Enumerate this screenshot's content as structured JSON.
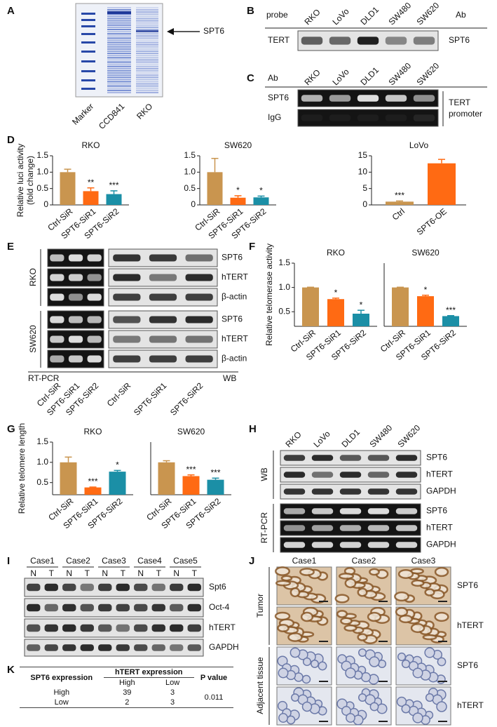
{
  "panel_labels": [
    "A",
    "B",
    "C",
    "D",
    "E",
    "F",
    "G",
    "H",
    "I",
    "J",
    "K"
  ],
  "panel_a": {
    "lanes": [
      "Marker",
      "CCD841",
      "RKO"
    ],
    "arrow_label": "SPT6"
  },
  "panel_b": {
    "probe_label": "probe",
    "ab_label": "Ab",
    "lanes": [
      "RKO",
      "LoVo",
      "DLD1",
      "SW480",
      "SW620"
    ],
    "row": "TERT",
    "antibody": "SPT6"
  },
  "panel_c": {
    "ab_label": "Ab",
    "lanes": [
      "RKO",
      "LoVo",
      "DLD1",
      "SW480",
      "SW620"
    ],
    "rows": [
      "SPT6",
      "IgG"
    ],
    "target": [
      "TERT",
      "promoter"
    ]
  },
  "chart_data": [
    {
      "type": "bar",
      "title": "RKO",
      "y_label": [
        "Relative luci activity",
        "(fold change)"
      ],
      "categories": [
        "Ctrl-SiR",
        "SPT6-SiR1",
        "SPT6-SiR2"
      ],
      "values": [
        1.0,
        0.42,
        0.33
      ],
      "errors": [
        0.09,
        0.1,
        0.1
      ],
      "annotations": [
        null,
        "**",
        "***"
      ],
      "colors": [
        "#c9954f",
        "#ff6a13",
        "#1b8fa6"
      ],
      "ylim": [
        0,
        1.5
      ],
      "yticks": [
        0,
        0.5,
        {
          "value": 1,
          "label": "1.0"
        },
        1.5
      ]
    },
    {
      "type": "bar",
      "title": "SW620",
      "categories": [
        "Ctrl-SiR",
        "SPT6-SiR1",
        "SPT6-SiR2"
      ],
      "values": [
        1.0,
        0.22,
        0.23
      ],
      "errors": [
        0.42,
        0.06,
        0.04
      ],
      "annotations": [
        null,
        "*",
        "*"
      ],
      "colors": [
        "#c9954f",
        "#ff6a13",
        "#1b8fa6"
      ],
      "ylim": [
        0,
        1.5
      ],
      "yticks": [
        0,
        0.5,
        {
          "value": 1,
          "label": "1.0"
        },
        1.5
      ]
    },
    {
      "type": "bar",
      "title": "LoVo",
      "categories": [
        "Ctrl",
        "SPT6-OE"
      ],
      "values": [
        1,
        12.7
      ],
      "errors": [
        0.2,
        1.2
      ],
      "annotations": [
        "***",
        null
      ],
      "colors": [
        "#c9954f",
        "#ff6a13"
      ],
      "ylim": [
        0,
        15
      ],
      "yticks": [
        0,
        5,
        10,
        15
      ]
    },
    {
      "type": "bar",
      "title": "RKO",
      "y_label": "Relative telomerase activity",
      "categories": [
        "Ctrl-SiR",
        "SPT6-SiR1",
        "SPT6-SiR2"
      ],
      "values": [
        1.0,
        0.76,
        0.46
      ],
      "errors": [
        0.005,
        0.02,
        0.07
      ],
      "annotations": [
        null,
        "*",
        "*"
      ],
      "colors": [
        "#c9954f",
        "#ff6a13",
        "#1b8fa6"
      ],
      "ylim": [
        0.2,
        1.5
      ],
      "yticks": [
        0.5,
        {
          "value": 1,
          "label": "1.0"
        },
        1.5
      ]
    },
    {
      "type": "bar",
      "title": "SW620",
      "categories": [
        "Ctrl-SiR",
        "SPT6-SiR1",
        "SPT6-SiR2"
      ],
      "values": [
        1.0,
        0.82,
        0.41
      ],
      "errors": [
        0.005,
        0.02,
        0.01
      ],
      "annotations": [
        null,
        "*",
        "***"
      ],
      "colors": [
        "#c9954f",
        "#ff6a13",
        "#1b8fa6"
      ],
      "ylim": [
        0.2,
        1.5
      ]
    },
    {
      "type": "bar",
      "title": "RKO",
      "y_label": "Relative telomere length",
      "categories": [
        "Ctrl-SiR",
        "SPT6-SiR1",
        "SPT6-SiR2"
      ],
      "values": [
        1.0,
        0.38,
        0.77
      ],
      "errors": [
        0.13,
        0.01,
        0.03
      ],
      "annotations": [
        null,
        "***",
        "*"
      ],
      "colors": [
        "#c9954f",
        "#ff6a13",
        "#1b8fa6"
      ],
      "ylim": [
        0.2,
        1.5
      ],
      "yticks": [
        0.5,
        {
          "value": 1,
          "label": "1.0"
        },
        1.5
      ]
    },
    {
      "type": "bar",
      "title": "SW620",
      "categories": [
        "Ctrl-SiR",
        "SPT6-SiR1",
        "SPT6-SiR2"
      ],
      "values": [
        1.0,
        0.66,
        0.57
      ],
      "errors": [
        0.04,
        0.03,
        0.04
      ],
      "annotations": [
        null,
        "***",
        "***"
      ],
      "colors": [
        "#c9954f",
        "#ff6a13",
        "#1b8fa6"
      ],
      "ylim": [
        0.2,
        1.5
      ]
    }
  ],
  "panel_e": {
    "cell_lines": [
      "RKO",
      "SW620"
    ],
    "rows": [
      [
        "SPT6",
        "hTERT",
        "β-actin"
      ],
      [
        "SPT6",
        "hTERT",
        "β-actin"
      ]
    ],
    "methods": [
      "RT-PCR",
      "WB"
    ],
    "lanes": [
      [
        "Ctrl-SiR",
        "SPT6-SiR1",
        "SPT6-SiR2"
      ],
      [
        "Ctrl-SiR",
        "SPT6-SiR1",
        "SPT6-SiR2"
      ]
    ]
  },
  "panel_h": {
    "lanes": [
      "RKO",
      "LoVo",
      "DLD1",
      "SW480",
      "SW620"
    ],
    "groups": [
      "WB",
      "RT-PCR"
    ],
    "rows": [
      [
        "SPT6",
        "hTERT",
        "GAPDH"
      ],
      [
        "SPT6",
        "hTERT",
        "GAPDH"
      ]
    ]
  },
  "panel_i": {
    "cases": [
      "Case1",
      "Case2",
      "Case3",
      "Case4",
      "Case5"
    ],
    "lanes": [
      "N",
      "T",
      "N",
      "T",
      "N",
      "T",
      "N",
      "T",
      "N",
      "T"
    ],
    "rows": [
      "Spt6",
      "Oct-4",
      "hTERT",
      "GAPDH"
    ]
  },
  "panel_j": {
    "cases": [
      "Case1",
      "Case2",
      "Case3"
    ],
    "groups": [
      "Tumor",
      "Adjacent tissue"
    ],
    "rows": [
      [
        "SPT6",
        "hTERT"
      ],
      [
        "SPT6",
        "hTERT"
      ]
    ]
  },
  "panel_k": {
    "header": {
      "row_label": "SPT6 expression",
      "group": "hTERT expression",
      "columns": [
        "High",
        "Low"
      ],
      "p_label": "P value"
    },
    "rows": [
      [
        "High",
        39,
        3
      ],
      [
        "Low",
        2,
        3
      ]
    ],
    "p_value": 0.011
  }
}
